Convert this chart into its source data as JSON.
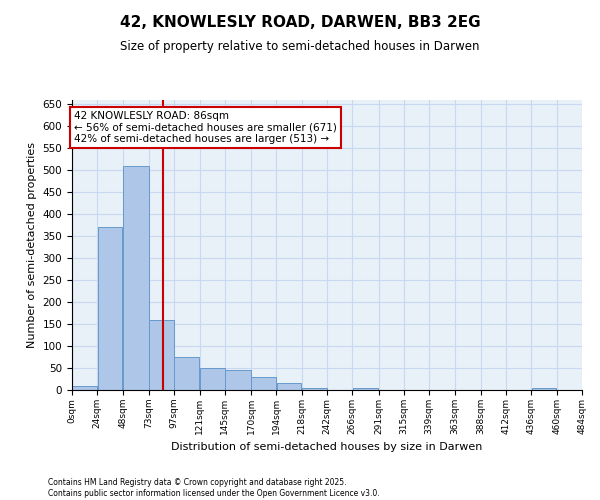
{
  "title": "42, KNOWLESLY ROAD, DARWEN, BB3 2EG",
  "subtitle": "Size of property relative to semi-detached houses in Darwen",
  "xlabel": "Distribution of semi-detached houses by size in Darwen",
  "ylabel": "Number of semi-detached properties",
  "property_size": 86,
  "property_label": "42 KNOWLESLY ROAD: 86sqm",
  "pct_smaller": 56,
  "pct_smaller_n": 671,
  "pct_larger": 42,
  "pct_larger_n": 513,
  "bin_edges": [
    0,
    24,
    48,
    73,
    97,
    121,
    145,
    170,
    194,
    218,
    242,
    266,
    291,
    315,
    339,
    363,
    388,
    412,
    436,
    460,
    484
  ],
  "bar_heights": [
    10,
    370,
    510,
    160,
    75,
    50,
    45,
    30,
    15,
    5,
    0,
    5,
    0,
    0,
    0,
    0,
    0,
    0,
    5,
    0
  ],
  "bar_color": "#aec6e8",
  "bar_edge_color": "#6699cc",
  "vline_color": "#cc0000",
  "annotation_box_color": "#cc0000",
  "grid_color": "#c8d8f0",
  "background_color": "#e8f0f8",
  "footer_text": "Contains HM Land Registry data © Crown copyright and database right 2025.\nContains public sector information licensed under the Open Government Licence v3.0.",
  "ylim": [
    0,
    660
  ],
  "yticks": [
    0,
    50,
    100,
    150,
    200,
    250,
    300,
    350,
    400,
    450,
    500,
    550,
    600,
    650
  ]
}
